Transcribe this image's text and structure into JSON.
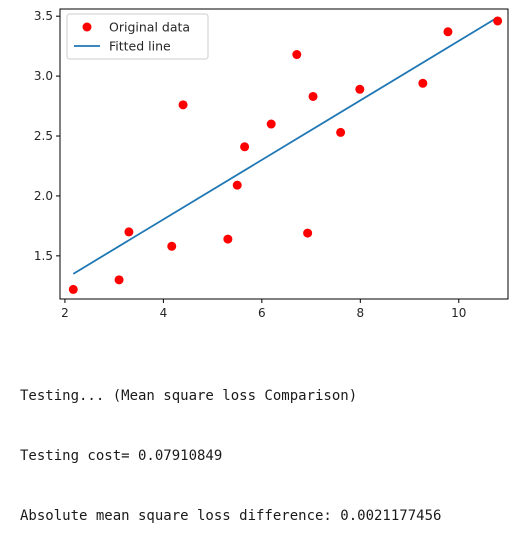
{
  "chart_data": {
    "type": "scatter",
    "xlim": [
      1.9,
      11.0
    ],
    "ylim": [
      1.14,
      3.56
    ],
    "xticks": [
      2,
      4,
      6,
      8,
      10
    ],
    "yticks": [
      1.5,
      2.0,
      2.5,
      3.0,
      3.5
    ],
    "xtick_labels": [
      "2",
      "4",
      "6",
      "8",
      "10"
    ],
    "ytick_labels": [
      "1.5",
      "2.0",
      "2.5",
      "3.0",
      "3.5"
    ],
    "grid": false,
    "legend_position": "upper-left",
    "series": [
      {
        "name": "Original data",
        "kind": "scatter",
        "color": "#ff0000",
        "x": [
          2.17,
          3.1,
          3.3,
          4.17,
          4.4,
          5.31,
          5.5,
          5.65,
          6.19,
          6.71,
          6.93,
          7.04,
          7.6,
          7.99,
          9.27,
          9.78,
          10.79
        ],
        "y": [
          1.22,
          1.3,
          1.7,
          1.58,
          2.76,
          1.64,
          2.09,
          2.41,
          2.6,
          3.18,
          1.69,
          2.83,
          2.53,
          2.89,
          2.94,
          3.37,
          3.46
        ]
      },
      {
        "name": "Fitted line",
        "kind": "line",
        "color": "#1f77b4",
        "x": [
          2.17,
          10.79
        ],
        "y": [
          1.35,
          3.49
        ]
      }
    ]
  },
  "console": {
    "line1": "Testing... (Mean square loss Comparison)",
    "line2": "Testing cost= 0.07910849",
    "line3": "Absolute mean square loss difference: 0.0021177456"
  }
}
